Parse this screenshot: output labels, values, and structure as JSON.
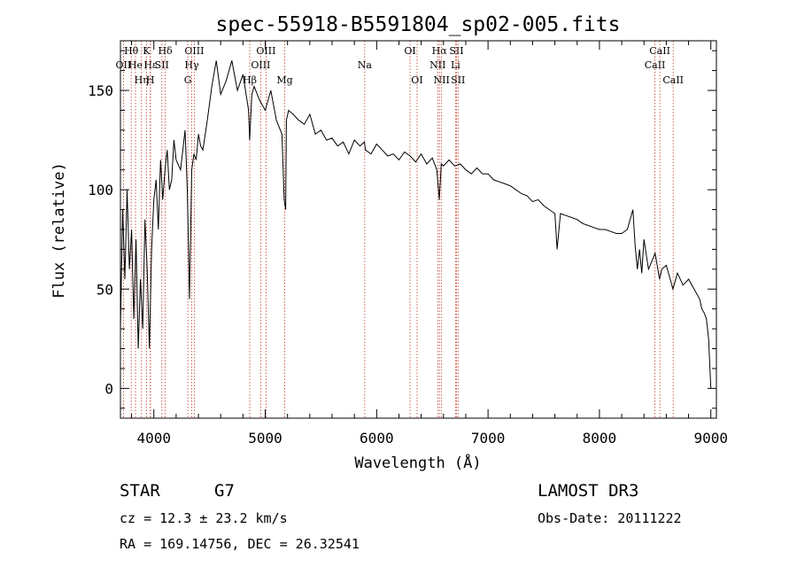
{
  "chart_data": {
    "type": "line",
    "title": "spec-55918-B5591804_sp02-005.fits",
    "xlabel": "Wavelength (Å)",
    "ylabel": "Flux (relative)",
    "xlim": [
      3700,
      9050
    ],
    "ylim": [
      -15,
      175
    ],
    "xticks": [
      4000,
      5000,
      6000,
      7000,
      8000,
      9000
    ],
    "yticks": [
      0,
      50,
      100,
      150
    ],
    "grid": false,
    "series": [
      {
        "name": "spectrum",
        "x": [
          3700,
          3720,
          3740,
          3760,
          3780,
          3800,
          3820,
          3840,
          3860,
          3880,
          3900,
          3920,
          3940,
          3960,
          3980,
          4000,
          4020,
          4040,
          4060,
          4080,
          4100,
          4120,
          4140,
          4160,
          4180,
          4200,
          4240,
          4280,
          4300,
          4320,
          4340,
          4360,
          4380,
          4400,
          4420,
          4440,
          4480,
          4520,
          4560,
          4600,
          4650,
          4700,
          4750,
          4800,
          4850,
          4860,
          4880,
          4900,
          4950,
          5000,
          5050,
          5100,
          5150,
          5170,
          5183,
          5190,
          5210,
          5250,
          5300,
          5350,
          5400,
          5450,
          5500,
          5550,
          5600,
          5650,
          5700,
          5750,
          5800,
          5850,
          5890,
          5900,
          5950,
          6000,
          6050,
          6100,
          6150,
          6200,
          6250,
          6300,
          6350,
          6400,
          6450,
          6500,
          6540,
          6563,
          6580,
          6600,
          6650,
          6700,
          6750,
          6800,
          6850,
          6900,
          6950,
          7000,
          7050,
          7100,
          7150,
          7200,
          7250,
          7300,
          7350,
          7400,
          7450,
          7500,
          7550,
          7600,
          7620,
          7650,
          7700,
          7750,
          7800,
          7850,
          7900,
          7950,
          8000,
          8050,
          8100,
          8150,
          8200,
          8250,
          8300,
          8320,
          8340,
          8360,
          8380,
          8400,
          8440,
          8500,
          8540,
          8560,
          8600,
          8660,
          8700,
          8750,
          8800,
          8850,
          8900,
          8920,
          8940,
          8960,
          8980,
          9000
        ],
        "values": [
          30,
          90,
          55,
          100,
          60,
          80,
          35,
          75,
          20,
          55,
          30,
          85,
          60,
          20,
          70,
          95,
          105,
          80,
          115,
          95,
          110,
          120,
          100,
          105,
          125,
          115,
          110,
          130,
          100,
          45,
          110,
          118,
          115,
          128,
          122,
          120,
          135,
          152,
          165,
          148,
          155,
          165,
          150,
          158,
          140,
          125,
          148,
          152,
          145,
          140,
          150,
          135,
          128,
          95,
          90,
          135,
          140,
          138,
          135,
          133,
          138,
          128,
          130,
          125,
          126,
          122,
          124,
          118,
          125,
          122,
          124,
          120,
          118,
          123,
          120,
          117,
          118,
          115,
          119,
          117,
          114,
          118,
          113,
          116,
          110,
          95,
          113,
          112,
          115,
          112,
          113,
          110,
          108,
          111,
          108,
          108,
          105,
          104,
          103,
          102,
          100,
          98,
          97,
          94,
          95,
          92,
          90,
          88,
          70,
          88,
          87,
          86,
          85,
          83,
          82,
          81,
          80,
          80,
          79,
          78,
          78,
          80,
          90,
          72,
          60,
          70,
          58,
          75,
          60,
          68,
          55,
          60,
          62,
          50,
          58,
          52,
          55,
          50,
          45,
          40,
          38,
          35,
          25,
          0
        ]
      }
    ],
    "lines": [
      {
        "name": "OII",
        "x": 3727,
        "row": 1
      },
      {
        "name": "Hθ",
        "x": 3797,
        "row": 0
      },
      {
        "name": "He",
        "x": 3835,
        "row": 1
      },
      {
        "name": "Hη",
        "x": 3889,
        "row": 2
      },
      {
        "name": "K",
        "x": 3934,
        "row": 0
      },
      {
        "name": "Hε",
        "x": 3970,
        "row": 1
      },
      {
        "name": "H",
        "x": 3968,
        "row": 2
      },
      {
        "name": "SII",
        "x": 4072,
        "row": 1
      },
      {
        "name": "Hδ",
        "x": 4102,
        "row": 0
      },
      {
        "name": "OIII",
        "x": 4363,
        "row": 0
      },
      {
        "name": "Hγ",
        "x": 4340,
        "row": 1
      },
      {
        "name": "G",
        "x": 4305,
        "row": 2
      },
      {
        "name": "OIII",
        "x": 5007,
        "row": 0
      },
      {
        "name": "OIII",
        "x": 4959,
        "row": 1
      },
      {
        "name": "Hβ",
        "x": 4861,
        "row": 2
      },
      {
        "name": "Mg",
        "x": 5175,
        "row": 2
      },
      {
        "name": "Na",
        "x": 5893,
        "row": 1
      },
      {
        "name": "OI",
        "x": 6300,
        "row": 0
      },
      {
        "name": "OI",
        "x": 6363,
        "row": 2
      },
      {
        "name": "Hα",
        "x": 6563,
        "row": 0
      },
      {
        "name": "NII",
        "x": 6548,
        "row": 1
      },
      {
        "name": "NII",
        "x": 6583,
        "row": 2
      },
      {
        "name": "SII",
        "x": 6717,
        "row": 0
      },
      {
        "name": "Li",
        "x": 6708,
        "row": 1
      },
      {
        "name": "SII",
        "x": 6731,
        "row": 2
      },
      {
        "name": "CaII",
        "x": 8542,
        "row": 0
      },
      {
        "name": "CaII",
        "x": 8498,
        "row": 1
      },
      {
        "name": "CaII",
        "x": 8662,
        "row": 2
      }
    ]
  },
  "info": {
    "object_class": "STAR",
    "subclass": "G7",
    "survey": "LAMOST DR3",
    "cz": "cz = 12.3 ± 23.2 km/s",
    "obs_date": "Obs-Date: 20111222",
    "coords": "RA = 169.14756, DEC =  26.32541"
  }
}
